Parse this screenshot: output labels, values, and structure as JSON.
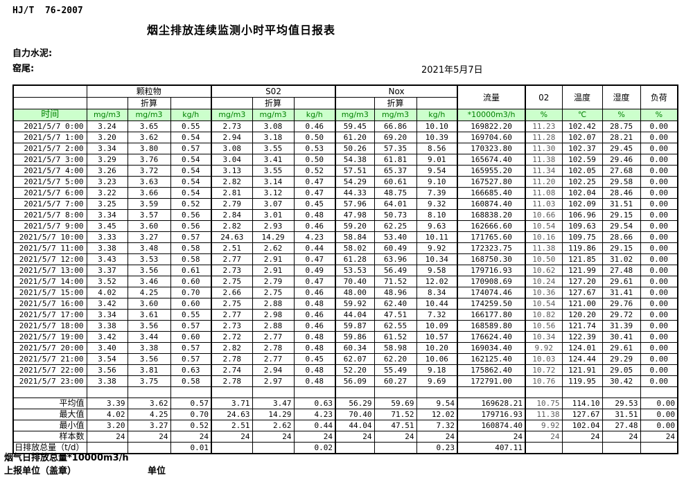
{
  "page": {
    "standard": "HJ/T  76-2007",
    "title": "烟尘排放连续监测小时平均值日报表",
    "company": "自力水泥:",
    "location": "窑尾:",
    "date": "2021年5月7日"
  },
  "colors": {
    "header_bg": "#ccffcc",
    "header_text": "#008000",
    "o2_column_text": "#595959",
    "border": "#000000"
  },
  "table": {
    "time_header": "时间",
    "pollutant_groups": [
      "颗粒物",
      "S02",
      "Nox"
    ],
    "converted_label": "折算",
    "single_columns": [
      "流量",
      "02",
      "温度",
      "湿度",
      "负荷"
    ],
    "units": [
      "mg/m3",
      "mg/m3",
      "kg/h",
      "mg/m3",
      "mg/m3",
      "kg/h",
      "mg/m3",
      "mg/m3",
      "kg/h",
      "*10000m3/h",
      "%",
      "℃",
      "%",
      "%"
    ],
    "rows": [
      {
        "time": "2021/5/7 0:00",
        "values": [
          "3.24",
          "3.65",
          "0.55",
          "2.73",
          "3.08",
          "0.46",
          "59.45",
          "66.86",
          "10.10",
          "169822.20",
          "11.23",
          "102.42",
          "28.75",
          "0.00"
        ]
      },
      {
        "time": "2021/5/7 1:00",
        "values": [
          "3.20",
          "3.62",
          "0.54",
          "2.94",
          "3.18",
          "0.50",
          "61.20",
          "69.20",
          "10.39",
          "169704.60",
          "11.28",
          "102.07",
          "28.21",
          "0.00"
        ]
      },
      {
        "time": "2021/5/7 2:00",
        "values": [
          "3.34",
          "3.80",
          "0.57",
          "3.08",
          "3.55",
          "0.53",
          "50.26",
          "57.35",
          "8.56",
          "170323.80",
          "11.30",
          "102.37",
          "29.45",
          "0.00"
        ]
      },
      {
        "time": "2021/5/7 3:00",
        "values": [
          "3.29",
          "3.76",
          "0.54",
          "3.04",
          "3.41",
          "0.50",
          "54.38",
          "61.81",
          "9.01",
          "165674.40",
          "11.38",
          "102.59",
          "29.46",
          "0.00"
        ]
      },
      {
        "time": "2021/5/7 4:00",
        "values": [
          "3.26",
          "3.72",
          "0.54",
          "3.13",
          "3.55",
          "0.52",
          "57.51",
          "65.37",
          "9.54",
          "165955.20",
          "11.34",
          "102.05",
          "27.68",
          "0.00"
        ]
      },
      {
        "time": "2021/5/7 5:00",
        "values": [
          "3.23",
          "3.63",
          "0.54",
          "2.82",
          "3.14",
          "0.47",
          "54.29",
          "60.61",
          "9.10",
          "167527.80",
          "11.20",
          "102.25",
          "29.58",
          "0.00"
        ]
      },
      {
        "time": "2021/5/7 6:00",
        "values": [
          "3.22",
          "3.66",
          "0.54",
          "2.81",
          "3.12",
          "0.47",
          "44.33",
          "48.75",
          "7.39",
          "166685.40",
          "11.08",
          "102.04",
          "28.46",
          "0.00"
        ]
      },
      {
        "time": "2021/5/7 7:00",
        "values": [
          "3.25",
          "3.59",
          "0.52",
          "2.79",
          "3.07",
          "0.45",
          "57.96",
          "64.01",
          "9.32",
          "160874.40",
          "11.03",
          "102.09",
          "31.51",
          "0.00"
        ]
      },
      {
        "time": "2021/5/7 8:00",
        "values": [
          "3.34",
          "3.57",
          "0.56",
          "2.84",
          "3.01",
          "0.48",
          "47.98",
          "50.73",
          "8.10",
          "168838.20",
          "10.66",
          "106.96",
          "29.15",
          "0.00"
        ]
      },
      {
        "time": "2021/5/7 9:00",
        "values": [
          "3.45",
          "3.60",
          "0.56",
          "2.82",
          "2.93",
          "0.46",
          "59.20",
          "62.25",
          "9.63",
          "162666.60",
          "10.54",
          "109.63",
          "29.54",
          "0.00"
        ]
      },
      {
        "time": "2021/5/7 10:00",
        "values": [
          "3.33",
          "3.27",
          "0.57",
          "24.63",
          "14.29",
          "4.23",
          "58.84",
          "53.40",
          "10.11",
          "171765.60",
          "10.16",
          "109.75",
          "28.66",
          "0.00"
        ]
      },
      {
        "time": "2021/5/7 11:00",
        "values": [
          "3.38",
          "3.48",
          "0.58",
          "2.51",
          "2.62",
          "0.44",
          "58.02",
          "60.49",
          "9.92",
          "172323.75",
          "11.38",
          "119.86",
          "29.15",
          "0.00"
        ]
      },
      {
        "time": "2021/5/7 12:00",
        "values": [
          "3.43",
          "3.53",
          "0.58",
          "2.77",
          "2.91",
          "0.47",
          "61.28",
          "63.96",
          "10.34",
          "168750.30",
          "10.50",
          "121.85",
          "31.02",
          "0.00"
        ]
      },
      {
        "time": "2021/5/7 13:00",
        "values": [
          "3.37",
          "3.56",
          "0.61",
          "2.73",
          "2.91",
          "0.49",
          "53.53",
          "56.49",
          "9.58",
          "179716.93",
          "10.62",
          "121.99",
          "27.48",
          "0.00"
        ]
      },
      {
        "time": "2021/5/7 14:00",
        "values": [
          "3.52",
          "3.46",
          "0.60",
          "2.75",
          "2.79",
          "0.47",
          "70.40",
          "71.52",
          "12.02",
          "170908.69",
          "10.24",
          "127.20",
          "29.61",
          "0.00"
        ]
      },
      {
        "time": "2021/5/7 15:00",
        "values": [
          "4.02",
          "4.25",
          "0.70",
          "2.66",
          "2.75",
          "0.46",
          "48.00",
          "48.96",
          "8.34",
          "174074.46",
          "10.36",
          "127.67",
          "31.41",
          "0.00"
        ]
      },
      {
        "time": "2021/5/7 16:00",
        "values": [
          "3.42",
          "3.60",
          "0.60",
          "2.75",
          "2.88",
          "0.48",
          "59.92",
          "62.40",
          "10.44",
          "174259.50",
          "10.54",
          "121.00",
          "29.76",
          "0.00"
        ]
      },
      {
        "time": "2021/5/7 17:00",
        "values": [
          "3.34",
          "3.61",
          "0.55",
          "2.77",
          "2.98",
          "0.46",
          "44.04",
          "47.51",
          "7.32",
          "166177.80",
          "10.82",
          "120.20",
          "29.72",
          "0.00"
        ]
      },
      {
        "time": "2021/5/7 18:00",
        "values": [
          "3.38",
          "3.56",
          "0.57",
          "2.73",
          "2.88",
          "0.46",
          "59.87",
          "62.55",
          "10.09",
          "168589.80",
          "10.56",
          "121.74",
          "31.39",
          "0.00"
        ]
      },
      {
        "time": "2021/5/7 19:00",
        "values": [
          "3.42",
          "3.44",
          "0.60",
          "2.72",
          "2.77",
          "0.48",
          "59.86",
          "61.52",
          "10.57",
          "176624.40",
          "10.34",
          "122.39",
          "30.41",
          "0.00"
        ]
      },
      {
        "time": "2021/5/7 20:00",
        "values": [
          "3.40",
          "3.38",
          "0.57",
          "2.82",
          "2.78",
          "0.48",
          "60.34",
          "58.98",
          "10.20",
          "169034.40",
          "9.92",
          "124.01",
          "29.61",
          "0.00"
        ]
      },
      {
        "time": "2021/5/7 21:00",
        "values": [
          "3.54",
          "3.56",
          "0.57",
          "2.78",
          "2.77",
          "0.45",
          "62.07",
          "62.20",
          "10.06",
          "162125.40",
          "10.03",
          "124.44",
          "29.29",
          "0.00"
        ]
      },
      {
        "time": "2021/5/7 22:00",
        "values": [
          "3.56",
          "3.81",
          "0.63",
          "2.74",
          "2.94",
          "0.48",
          "52.20",
          "55.49",
          "9.18",
          "175862.40",
          "10.72",
          "121.91",
          "29.05",
          "0.00"
        ]
      },
      {
        "time": "2021/5/7 23:00",
        "values": [
          "3.38",
          "3.75",
          "0.58",
          "2.78",
          "2.97",
          "0.48",
          "56.09",
          "60.27",
          "9.69",
          "172791.00",
          "10.76",
          "119.95",
          "30.42",
          "0.00"
        ]
      }
    ],
    "summary_rows": [
      {
        "label": "平均值",
        "values": [
          "3.39",
          "3.62",
          "0.57",
          "3.71",
          "3.47",
          "0.63",
          "56.29",
          "59.69",
          "9.54",
          "169628.21",
          "10.75",
          "114.10",
          "29.53",
          "0.00"
        ]
      },
      {
        "label": "最大值",
        "values": [
          "4.02",
          "4.25",
          "0.70",
          "24.63",
          "14.29",
          "4.23",
          "70.40",
          "71.52",
          "12.02",
          "179716.93",
          "11.38",
          "127.67",
          "31.51",
          "0.00"
        ]
      },
      {
        "label": "最小值",
        "values": [
          "3.20",
          "3.27",
          "0.52",
          "2.51",
          "2.62",
          "0.44",
          "44.04",
          "47.51",
          "7.32",
          "160874.40",
          "9.92",
          "102.04",
          "27.48",
          "0.00"
        ]
      },
      {
        "label": "样本数",
        "values": [
          "24",
          "24",
          "24",
          "24",
          "24",
          "24",
          "24",
          "24",
          "24",
          "24",
          "24",
          "24",
          "24",
          "24"
        ]
      },
      {
        "label": "日排放总量（t/d）",
        "values": [
          "",
          "",
          "0.01",
          "",
          "",
          "0.02",
          "",
          "",
          "0.23",
          "407.11",
          "",
          "",
          "",
          ""
        ]
      }
    ]
  },
  "footer": {
    "note": "烟气日排放总量*10000m3/h",
    "reporting_unit": "上报单位（盖章）",
    "unit": "单位"
  }
}
